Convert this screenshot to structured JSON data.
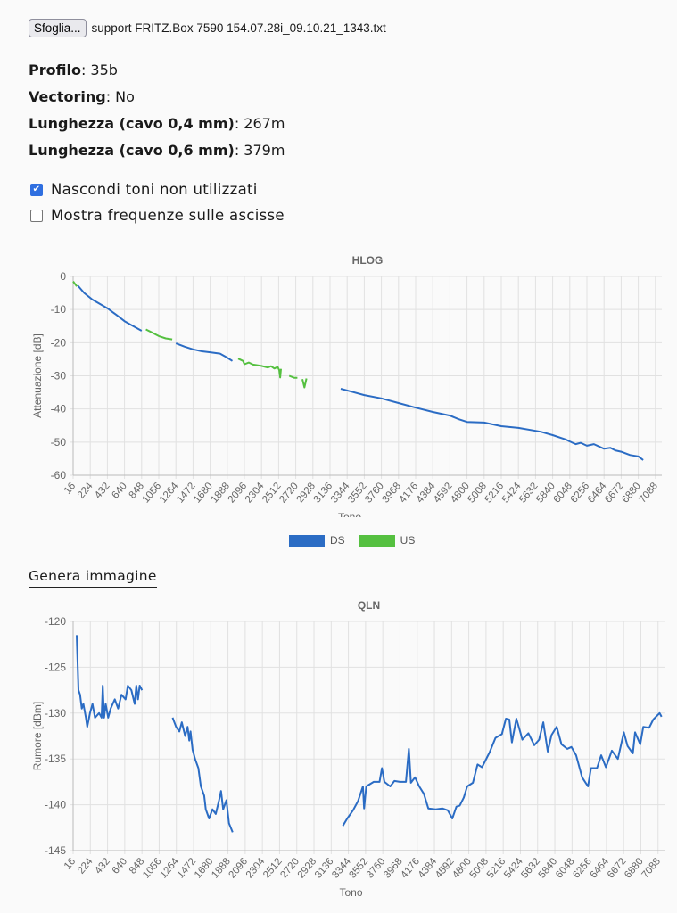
{
  "file": {
    "button_label": "Sfoglia...",
    "file_name": "support FRITZ.Box 7590 154.07.28i_09.10.21_1343.txt"
  },
  "info": [
    {
      "label": "Profilo",
      "value": ": 35b"
    },
    {
      "label": "Vectoring",
      "value": ": No"
    },
    {
      "label": "Lunghezza (cavo 0,4 mm)",
      "value": ": 267m"
    },
    {
      "label": "Lunghezza (cavo 0,6 mm)",
      "value": ": 379m"
    }
  ],
  "options": [
    {
      "label": "Nascondi toni non utilizzati",
      "checked": true
    },
    {
      "label": "Mostra frequenze sulle ascisse",
      "checked": false
    }
  ],
  "generate_image_label": "Genera immagine",
  "colors": {
    "ds": "#2b6cc4",
    "us": "#55c040"
  },
  "chart_data": [
    {
      "type": "line",
      "title": "HLOG",
      "xlabel": "Tono",
      "ylabel": "Attenuazione [dB]",
      "xlim": [
        16,
        7166
      ],
      "ylim": [
        -60,
        0
      ],
      "y_ticks": [
        0,
        -10,
        -20,
        -30,
        -40,
        -50,
        -60
      ],
      "x_ticks": [
        "16",
        "224",
        "432",
        "640",
        "848",
        "1056",
        "1264",
        "1472",
        "1680",
        "1888",
        "2096",
        "2304",
        "2512",
        "2720",
        "2928",
        "3136",
        "3344",
        "3552",
        "3760",
        "3968",
        "4176",
        "4384",
        "4592",
        "4800",
        "5008",
        "5216",
        "5424",
        "5632",
        "5840",
        "6048",
        "6256",
        "6464",
        "6672",
        "6880",
        "7088"
      ],
      "legend": [
        {
          "name": "DS",
          "color_key": "ds"
        },
        {
          "name": "US",
          "color_key": "us"
        }
      ],
      "legend_position": "bottom",
      "series": [
        {
          "name": "DS",
          "segments": [
            [
              [
                70,
                -2.7
              ],
              [
                150,
                -5
              ],
              [
                250,
                -7
              ],
              [
                432,
                -9.6
              ],
              [
                540,
                -11.6
              ],
              [
                640,
                -13.5
              ],
              [
                760,
                -15.2
              ],
              [
                848,
                -16.4
              ]
            ],
            [
              [
                1264,
                -20.2
              ],
              [
                1370,
                -21.2
              ],
              [
                1472,
                -22
              ],
              [
                1580,
                -22.6
              ],
              [
                1680,
                -22.9
              ],
              [
                1800,
                -23.3
              ],
              [
                1880,
                -24.4
              ],
              [
                1950,
                -25.5
              ]
            ],
            [
              [
                3266,
                -33.9
              ],
              [
                3400,
                -34.8
              ],
              [
                3552,
                -35.8
              ],
              [
                3760,
                -36.8
              ],
              [
                3968,
                -38.2
              ],
              [
                4176,
                -39.6
              ],
              [
                4384,
                -40.9
              ],
              [
                4592,
                -42
              ],
              [
                4700,
                -43.1
              ],
              [
                4800,
                -43.9
              ],
              [
                5008,
                -44.1
              ],
              [
                5216,
                -45.2
              ],
              [
                5424,
                -45.7
              ],
              [
                5632,
                -46.6
              ],
              [
                5700,
                -46.9
              ],
              [
                5840,
                -47.9
              ],
              [
                6000,
                -49.2
              ],
              [
                6048,
                -49.8
              ],
              [
                6120,
                -50.6
              ],
              [
                6180,
                -50.2
              ],
              [
                6256,
                -51.1
              ],
              [
                6340,
                -50.6
              ],
              [
                6464,
                -52
              ],
              [
                6540,
                -51.7
              ],
              [
                6600,
                -52.5
              ],
              [
                6672,
                -52.9
              ],
              [
                6780,
                -53.9
              ],
              [
                6880,
                -54.3
              ],
              [
                6940,
                -55.4
              ]
            ]
          ]
        },
        {
          "name": "US",
          "segments": [
            [
              [
                16,
                -1.5
              ],
              [
                60,
                -3
              ]
            ],
            [
              [
                900,
                -16
              ],
              [
                980,
                -17
              ],
              [
                1056,
                -18
              ],
              [
                1140,
                -18.7
              ],
              [
                1220,
                -19
              ]
            ],
            [
              [
                2020,
                -24.8
              ],
              [
                2080,
                -25.5
              ],
              [
                2096,
                -26.5
              ],
              [
                2150,
                -26
              ],
              [
                2200,
                -26.6
              ],
              [
                2304,
                -27
              ],
              [
                2380,
                -27.5
              ],
              [
                2420,
                -27.1
              ],
              [
                2460,
                -27.8
              ],
              [
                2500,
                -27.3
              ],
              [
                2520,
                -28.3
              ],
              [
                2530,
                -30.5
              ],
              [
                2540,
                -27.9
              ]
            ],
            [
              [
                2640,
                -30
              ],
              [
                2700,
                -30.6
              ],
              [
                2740,
                -30.6
              ]
            ],
            [
              [
                2800,
                -31
              ],
              [
                2825,
                -33.5
              ],
              [
                2850,
                -30.8
              ]
            ]
          ]
        }
      ]
    },
    {
      "type": "line",
      "title": "QLN",
      "xlabel": "Tono",
      "ylabel": "Rumore [dBm]",
      "xlim": [
        16,
        7166
      ],
      "ylim": [
        -145,
        -120
      ],
      "y_ticks": [
        -120,
        -125,
        -130,
        -135,
        -140,
        -145
      ],
      "x_ticks": [
        "16",
        "224",
        "432",
        "640",
        "848",
        "1056",
        "1264",
        "1472",
        "1680",
        "1888",
        "2096",
        "2304",
        "2512",
        "2720",
        "2928",
        "3136",
        "3344",
        "3552",
        "3760",
        "3968",
        "4176",
        "4384",
        "4592",
        "4800",
        "5008",
        "5216",
        "5424",
        "5632",
        "5840",
        "6048",
        "6256",
        "6464",
        "6672",
        "6880",
        "7088"
      ],
      "series": [
        {
          "name": "DS",
          "segments": [
            [
              [
                59,
                -121.5
              ],
              [
                81,
                -127.5
              ],
              [
                100,
                -128
              ],
              [
                121,
                -129.5
              ],
              [
                140,
                -129
              ],
              [
                170,
                -130.5
              ],
              [
                186,
                -131.5
              ],
              [
                220,
                -130
              ],
              [
                250,
                -129
              ],
              [
                280,
                -130.5
              ],
              [
                330,
                -130
              ],
              [
                360,
                -130.5
              ],
              [
                374,
                -127
              ],
              [
                390,
                -130.5
              ],
              [
                410,
                -129
              ],
              [
                440,
                -130.5
              ],
              [
                470,
                -129.5
              ],
              [
                520,
                -128.5
              ],
              [
                560,
                -129.5
              ],
              [
                600,
                -128
              ],
              [
                650,
                -128.5
              ],
              [
                677,
                -127
              ],
              [
                720,
                -127.5
              ],
              [
                760,
                -129
              ],
              [
                780,
                -127
              ],
              [
                800,
                -128.5
              ],
              [
                820,
                -127
              ],
              [
                850,
                -127.5
              ]
            ],
            [
              [
                1218,
                -130.5
              ],
              [
                1260,
                -131.5
              ],
              [
                1300,
                -132
              ],
              [
                1330,
                -131
              ],
              [
                1370,
                -132.5
              ],
              [
                1400,
                -131.5
              ],
              [
                1420,
                -133
              ],
              [
                1435,
                -132
              ],
              [
                1460,
                -134
              ],
              [
                1490,
                -135
              ],
              [
                1530,
                -136
              ],
              [
                1560,
                -138
              ],
              [
                1600,
                -139
              ],
              [
                1620,
                -140.5
              ],
              [
                1660,
                -141.5
              ],
              [
                1700,
                -140.5
              ],
              [
                1740,
                -141
              ],
              [
                1780,
                -139.5
              ],
              [
                1804,
                -138.5
              ],
              [
                1830,
                -140.5
              ],
              [
                1869,
                -139.5
              ],
              [
                1900,
                -142
              ],
              [
                1944,
                -143
              ]
            ],
            [
              [
                3277,
                -142.3
              ],
              [
                3330,
                -141.5
              ],
              [
                3400,
                -140.6
              ],
              [
                3460,
                -139.6
              ],
              [
                3520,
                -138
              ],
              [
                3534,
                -140.4
              ],
              [
                3560,
                -138
              ],
              [
                3650,
                -137.5
              ],
              [
                3720,
                -137.5
              ],
              [
                3750,
                -136
              ],
              [
                3780,
                -137.5
              ],
              [
                3850,
                -138
              ],
              [
                3900,
                -137.4
              ],
              [
                3966,
                -137.5
              ],
              [
                4040,
                -137.5
              ],
              [
                4075,
                -133.9
              ],
              [
                4100,
                -137.6
              ],
              [
                4150,
                -137
              ],
              [
                4200,
                -138
              ],
              [
                4256,
                -138.8
              ],
              [
                4310,
                -140.4
              ],
              [
                4400,
                -140.5
              ],
              [
                4480,
                -140.4
              ],
              [
                4545,
                -140.6
              ],
              [
                4600,
                -141.5
              ],
              [
                4650,
                -140.2
              ],
              [
                4690,
                -140.1
              ],
              [
                4740,
                -139.2
              ],
              [
                4780,
                -138
              ],
              [
                4850,
                -137.6
              ],
              [
                4906,
                -135.6
              ],
              [
                4960,
                -135.9
              ],
              [
                5050,
                -134.3
              ],
              [
                5122,
                -132.7
              ],
              [
                5200,
                -132.3
              ],
              [
                5249,
                -130.6
              ],
              [
                5290,
                -130.7
              ],
              [
                5321,
                -133.2
              ],
              [
                5375,
                -130.6
              ],
              [
                5420,
                -132
              ],
              [
                5447,
                -132.9
              ],
              [
                5520,
                -132.2
              ],
              [
                5592,
                -133.5
              ],
              [
                5650,
                -132.9
              ],
              [
                5700,
                -131
              ],
              [
                5754,
                -134.2
              ],
              [
                5800,
                -132.4
              ],
              [
                5862,
                -131.5
              ],
              [
                5920,
                -133.4
              ],
              [
                5989,
                -133.9
              ],
              [
                6040,
                -133.7
              ],
              [
                6097,
                -134.6
              ],
              [
                6169,
                -137
              ],
              [
                6241,
                -138
              ],
              [
                6277,
                -136
              ],
              [
                6350,
                -136
              ],
              [
                6400,
                -134.6
              ],
              [
                6458,
                -135.9
              ],
              [
                6530,
                -134.1
              ],
              [
                6602,
                -135
              ],
              [
                6674,
                -132.1
              ],
              [
                6720,
                -133.6
              ],
              [
                6783,
                -134.4
              ],
              [
                6810,
                -132.1
              ],
              [
                6873,
                -133.4
              ],
              [
                6909,
                -131.5
              ],
              [
                6981,
                -131.6
              ],
              [
                7030,
                -130.7
              ],
              [
                7107,
                -130
              ],
              [
                7130,
                -130.4
              ]
            ]
          ]
        }
      ]
    }
  ]
}
